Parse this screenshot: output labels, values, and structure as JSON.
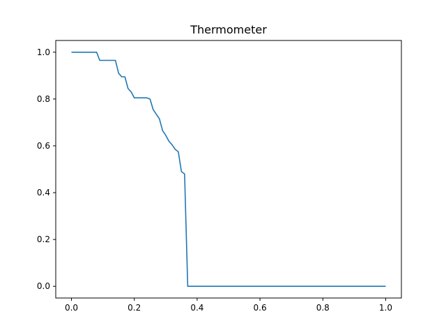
{
  "chart_data": {
    "type": "line",
    "title": "Thermometer",
    "xlabel": "",
    "ylabel": "",
    "xlim": [
      -0.05,
      1.05
    ],
    "ylim": [
      -0.05,
      1.05
    ],
    "x_ticks": [
      0.0,
      0.2,
      0.4,
      0.6,
      0.8,
      1.0
    ],
    "x_tick_labels": [
      "0.0",
      "0.2",
      "0.4",
      "0.6",
      "0.8",
      "1.0"
    ],
    "y_ticks": [
      0.0,
      0.2,
      0.4,
      0.6,
      0.8,
      1.0
    ],
    "y_tick_labels": [
      "0.0",
      "0.2",
      "0.4",
      "0.6",
      "0.8",
      "1.0"
    ],
    "grid": false,
    "legend": "none",
    "series": [
      {
        "color": "#1f77b4",
        "x": [
          0.0,
          0.08,
          0.09,
          0.14,
          0.15,
          0.16,
          0.17,
          0.18,
          0.19,
          0.2,
          0.24,
          0.25,
          0.26,
          0.27,
          0.28,
          0.29,
          0.3,
          0.31,
          0.32,
          0.33,
          0.34,
          0.35,
          0.36,
          0.37,
          0.38,
          0.39,
          1.0
        ],
        "y": [
          1.0,
          1.0,
          0.965,
          0.965,
          0.91,
          0.895,
          0.895,
          0.845,
          0.83,
          0.805,
          0.805,
          0.8,
          0.755,
          0.735,
          0.715,
          0.665,
          0.645,
          0.62,
          0.605,
          0.585,
          0.575,
          0.49,
          0.48,
          0.0,
          0.0,
          0.0,
          0.0
        ]
      }
    ]
  }
}
